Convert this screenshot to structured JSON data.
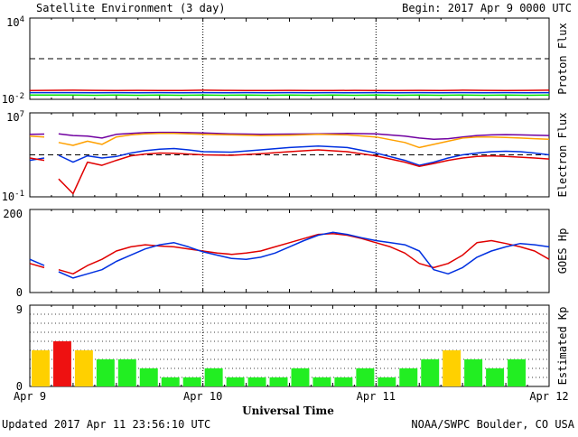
{
  "header": {
    "title": "Satellite Environment (3 day)",
    "begin": "Begin:  2017 Apr 9 0000 UTC"
  },
  "footer": {
    "updated": "Updated 2017 Apr 11 23:56:10 UTC",
    "source": "NOAA/SWPC Boulder, CO USA"
  },
  "x_axis": {
    "label": "Universal Time",
    "ticks": [
      "Apr 9",
      "Apr 10",
      "Apr 11",
      "Apr 12"
    ]
  },
  "colors": {
    "red": "#e00000",
    "blue": "#0030e0",
    "green": "#00e000",
    "orange": "#ffa000",
    "purple": "#7000a0",
    "yellow": "#ffd000",
    "kp_green": "#22ee22",
    "kp_red": "#ee1111"
  },
  "chart_data": [
    {
      "type": "line",
      "ylabel": "Proton Flux",
      "yscale": "log",
      "ylim": [
        0.01,
        10000
      ],
      "ytick_labels": [
        {
          "base": "10",
          "exp": "4"
        },
        {
          "base": "10",
          "exp": "-2"
        }
      ],
      "threshold": 10,
      "gap": [
        2.9,
        3.1
      ],
      "series": [
        {
          "color_key": "red",
          "x": [
            0,
            3,
            6,
            9,
            12,
            15,
            18,
            21,
            24,
            27,
            30,
            33,
            36,
            39,
            42,
            45,
            48,
            51,
            54,
            57,
            60,
            63,
            66,
            69,
            72
          ],
          "y": [
            0.045,
            0.044,
            0.047,
            0.046,
            0.045,
            0.046,
            0.044,
            0.045,
            0.047,
            0.046,
            0.045,
            0.044,
            0.046,
            0.045,
            0.044,
            0.046,
            0.045,
            0.044,
            0.046,
            0.045,
            0.047,
            0.046,
            0.044,
            0.046,
            0.047
          ]
        },
        {
          "color_key": "blue",
          "x": [
            0,
            3,
            6,
            9,
            12,
            15,
            18,
            21,
            24,
            27,
            30,
            33,
            36,
            39,
            42,
            45,
            48,
            51,
            54,
            57,
            60,
            63,
            66,
            69,
            72
          ],
          "y": [
            0.031,
            0.03,
            0.031,
            0.03,
            0.031,
            0.03,
            0.031,
            0.03,
            0.031,
            0.03,
            0.031,
            0.03,
            0.031,
            0.03,
            0.031,
            0.03,
            0.031,
            0.03,
            0.031,
            0.03,
            0.031,
            0.03,
            0.031,
            0.03,
            0.031
          ]
        },
        {
          "color_key": "green",
          "x": [
            0,
            3,
            6,
            9,
            12,
            15,
            18,
            21,
            24,
            27,
            30,
            33,
            36,
            39,
            42,
            45,
            48,
            51,
            54,
            57,
            60,
            63,
            66,
            69,
            72
          ],
          "y": [
            0.021,
            0.02,
            0.021,
            0.02,
            0.021,
            0.02,
            0.021,
            0.02,
            0.021,
            0.02,
            0.021,
            0.02,
            0.021,
            0.02,
            0.021,
            0.02,
            0.021,
            0.02,
            0.021,
            0.02,
            0.021,
            0.02,
            0.021,
            0.02,
            0.021
          ]
        }
      ]
    },
    {
      "type": "line",
      "ylabel": "Electron Flux",
      "yscale": "log",
      "ylim": [
        0.1,
        10000000
      ],
      "ytick_labels": [
        {
          "base": "10",
          "exp": "7"
        },
        {
          "base": "10",
          "exp": "-1"
        }
      ],
      "threshold": 1000,
      "gap": [
        2.9,
        3.1
      ],
      "series": [
        {
          "color_key": "purple",
          "x": [
            0,
            2,
            4,
            6,
            8,
            10,
            12,
            14,
            16,
            18,
            20,
            22,
            24,
            28,
            32,
            36,
            40,
            44,
            48,
            52,
            54,
            56,
            58,
            60,
            62,
            64,
            66,
            68,
            70,
            72
          ],
          "y": [
            90000,
            95000,
            100000,
            70000,
            60000,
            40000,
            90000,
            110000,
            130000,
            140000,
            140000,
            130000,
            120000,
            100000,
            90000,
            95000,
            100000,
            110000,
            100000,
            60000,
            40000,
            30000,
            35000,
            50000,
            70000,
            80000,
            85000,
            80000,
            75000,
            70000
          ]
        },
        {
          "color_key": "orange",
          "x": [
            0,
            2,
            4,
            6,
            8,
            10,
            12,
            14,
            16,
            18,
            20,
            22,
            24,
            28,
            32,
            36,
            40,
            44,
            48,
            52,
            54,
            56,
            58,
            60,
            62,
            64,
            66,
            68,
            70,
            72
          ],
          "y": [
            60000,
            50000,
            15000,
            8000,
            20000,
            10000,
            50000,
            80000,
            100000,
            110000,
            110000,
            100000,
            90000,
            80000,
            70000,
            75000,
            90000,
            80000,
            50000,
            15000,
            5000,
            10000,
            20000,
            40000,
            50000,
            50000,
            45000,
            40000,
            35000,
            30000
          ]
        },
        {
          "color_key": "blue",
          "x": [
            0,
            2,
            4,
            6,
            8,
            10,
            12,
            14,
            16,
            18,
            20,
            22,
            24,
            28,
            32,
            36,
            40,
            44,
            48,
            52,
            54,
            56,
            58,
            60,
            62,
            64,
            66,
            68,
            70,
            72
          ],
          "y": [
            300,
            500,
            900,
            200,
            800,
            500,
            700,
            1500,
            2500,
            3500,
            4000,
            3000,
            2000,
            1800,
            3000,
            5000,
            7000,
            5000,
            1500,
            300,
            100,
            200,
            500,
            1000,
            1500,
            2000,
            2200,
            2000,
            1500,
            1000
          ]
        },
        {
          "color_key": "red",
          "x": [
            0,
            2,
            4,
            6,
            8,
            10,
            12,
            14,
            16,
            18,
            20,
            22,
            24,
            28,
            32,
            36,
            40,
            44,
            48,
            52,
            54,
            56,
            58,
            60,
            62,
            64,
            66,
            68,
            70,
            72
          ],
          "y": [
            500,
            300,
            5,
            0.2,
            200,
            100,
            300,
            800,
            1200,
            1500,
            1400,
            1200,
            1000,
            900,
            1300,
            2000,
            3000,
            2000,
            800,
            200,
            80,
            150,
            300,
            500,
            700,
            800,
            700,
            600,
            500,
            400
          ]
        }
      ]
    },
    {
      "type": "line",
      "ylabel": "GOES Hp",
      "yscale": "linear",
      "ylim": [
        0,
        200
      ],
      "ytick_labels": [
        "200",
        "0"
      ],
      "gap": [
        2.9,
        3.1
      ],
      "series": [
        {
          "color_key": "red",
          "x": [
            0,
            2,
            4,
            6,
            8,
            10,
            12,
            14,
            16,
            18,
            20,
            22,
            24,
            26,
            28,
            30,
            32,
            34,
            36,
            38,
            40,
            42,
            44,
            46,
            48,
            50,
            52,
            54,
            56,
            58,
            60,
            62,
            64,
            66,
            68,
            70,
            72
          ],
          "y": [
            70,
            60,
            55,
            45,
            65,
            80,
            100,
            110,
            115,
            112,
            110,
            105,
            100,
            95,
            92,
            95,
            100,
            110,
            120,
            130,
            140,
            142,
            138,
            130,
            120,
            110,
            95,
            70,
            60,
            70,
            90,
            120,
            125,
            118,
            110,
            100,
            80
          ]
        },
        {
          "color_key": "blue",
          "x": [
            0,
            2,
            4,
            6,
            8,
            10,
            12,
            14,
            16,
            18,
            20,
            22,
            24,
            26,
            28,
            30,
            32,
            34,
            36,
            38,
            40,
            42,
            44,
            46,
            48,
            50,
            52,
            54,
            56,
            58,
            60,
            62,
            64,
            66,
            68,
            70,
            72
          ],
          "y": [
            80,
            65,
            50,
            35,
            45,
            55,
            75,
            90,
            105,
            115,
            120,
            110,
            98,
            90,
            82,
            80,
            85,
            95,
            110,
            125,
            138,
            145,
            140,
            132,
            125,
            120,
            115,
            100,
            55,
            45,
            60,
            85,
            100,
            110,
            118,
            115,
            110
          ]
        }
      ]
    },
    {
      "type": "bar",
      "ylabel": "Estimated Kp",
      "yscale": "linear",
      "ylim": [
        0,
        9
      ],
      "ytick_labels": [
        "9",
        "0"
      ],
      "bar_hours": 3,
      "values": [
        4,
        5,
        4,
        3,
        3,
        2,
        1,
        1,
        2,
        1,
        1,
        1,
        2,
        1,
        1,
        2,
        1,
        2,
        3,
        4,
        3,
        2,
        3,
        null
      ]
    }
  ]
}
